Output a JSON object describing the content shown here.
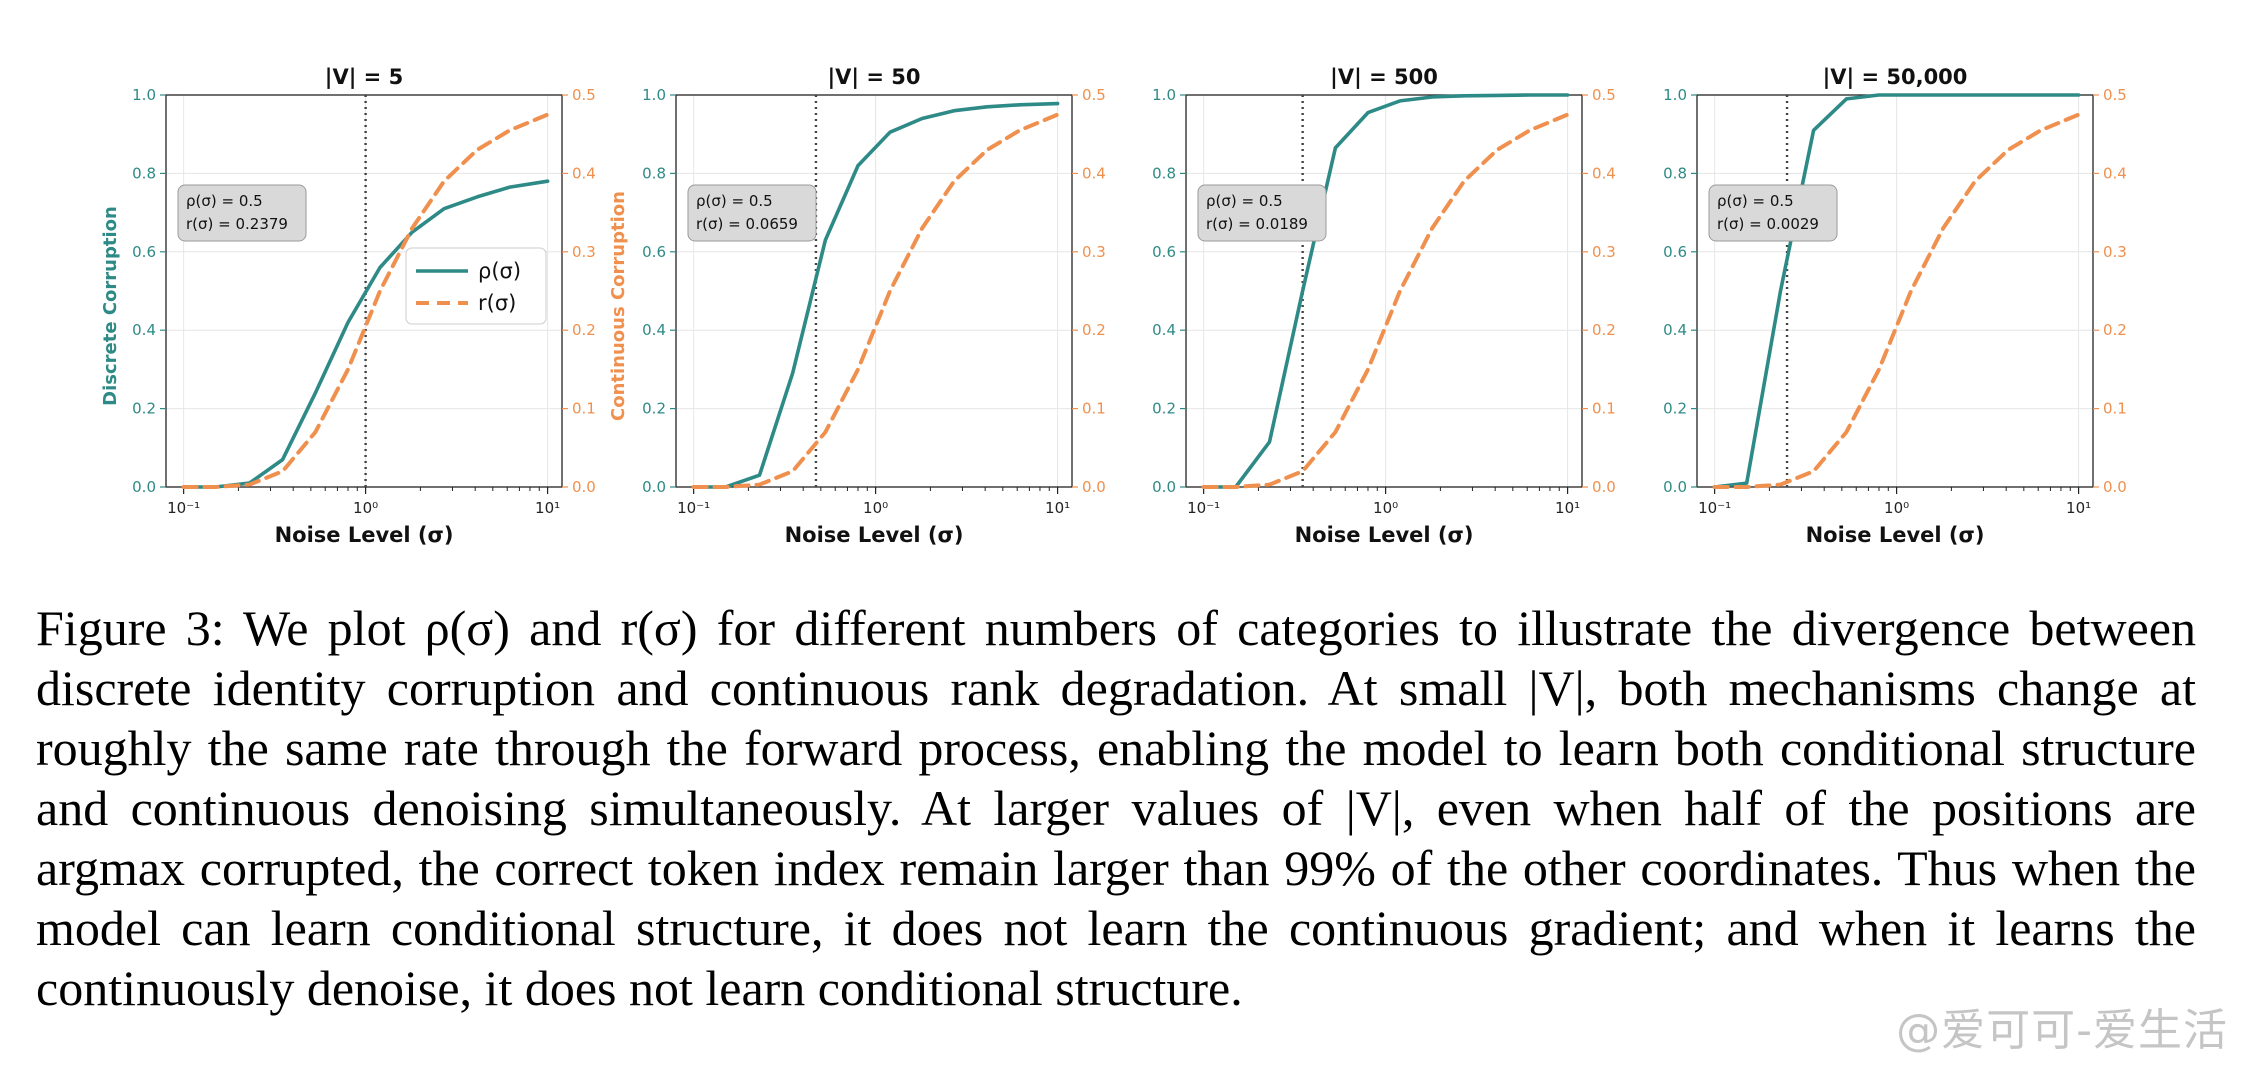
{
  "chart_data": [
    {
      "type": "line",
      "title": "|V| = 5",
      "xlabel": "Noise Level (σ)",
      "ylabel_left": "Discrete Corruption",
      "ylabel_right": "Continuous Corruption",
      "xscale": "log",
      "xlim": [
        0.08,
        12
      ],
      "ylim_left": [
        0.0,
        1.0
      ],
      "ylim_right": [
        0.0,
        0.5
      ],
      "x_ticks": [
        "10⁻¹",
        "10⁰",
        "10¹"
      ],
      "y_ticks_left": [
        "0.0",
        "0.2",
        "0.4",
        "0.6",
        "0.8",
        "1.0"
      ],
      "y_ticks_right": [
        "0.0",
        "0.1",
        "0.2",
        "0.3",
        "0.4",
        "0.5"
      ],
      "vline_x": 1.0,
      "annotation": [
        "ρ(σ) = 0.5",
        "r(σ) = 0.2379"
      ],
      "legend": {
        "placement": "center-right",
        "entries": [
          "ρ(σ)",
          "r(σ)"
        ]
      },
      "series": [
        {
          "name": "ρ(σ)",
          "axis": "left",
          "style": "solid",
          "x": [
            0.1,
            0.15,
            0.23,
            0.35,
            0.53,
            0.8,
            1.2,
            1.8,
            2.7,
            4.1,
            6.2,
            10
          ],
          "y": [
            0.0,
            0.0,
            0.01,
            0.07,
            0.24,
            0.42,
            0.56,
            0.65,
            0.71,
            0.74,
            0.765,
            0.78
          ]
        },
        {
          "name": "r(σ)",
          "axis": "right",
          "style": "dashed",
          "x": [
            0.1,
            0.15,
            0.23,
            0.35,
            0.53,
            0.8,
            1.2,
            1.8,
            2.7,
            4.1,
            6.2,
            10
          ],
          "y": [
            0.0,
            0.0,
            0.003,
            0.02,
            0.07,
            0.15,
            0.25,
            0.33,
            0.39,
            0.43,
            0.455,
            0.475
          ]
        }
      ]
    },
    {
      "type": "line",
      "title": "|V| = 50",
      "xlabel": "Noise Level (σ)",
      "xscale": "log",
      "xlim": [
        0.08,
        12
      ],
      "ylim_left": [
        0.0,
        1.0
      ],
      "ylim_right": [
        0.0,
        0.5
      ],
      "x_ticks": [
        "10⁻¹",
        "10⁰",
        "10¹"
      ],
      "y_ticks_left": [
        "0.0",
        "0.2",
        "0.4",
        "0.6",
        "0.8",
        "1.0"
      ],
      "y_ticks_right": [
        "0.0",
        "0.1",
        "0.2",
        "0.3",
        "0.4",
        "0.5"
      ],
      "vline_x": 0.47,
      "annotation": [
        "ρ(σ) = 0.5",
        "r(σ) = 0.0659"
      ],
      "series": [
        {
          "name": "ρ(σ)",
          "axis": "left",
          "style": "solid",
          "x": [
            0.1,
            0.15,
            0.23,
            0.35,
            0.53,
            0.8,
            1.2,
            1.8,
            2.7,
            4.1,
            6.2,
            10
          ],
          "y": [
            0.0,
            0.0,
            0.03,
            0.29,
            0.63,
            0.82,
            0.905,
            0.94,
            0.96,
            0.97,
            0.975,
            0.978
          ]
        },
        {
          "name": "r(σ)",
          "axis": "right",
          "style": "dashed",
          "x": [
            0.1,
            0.15,
            0.23,
            0.35,
            0.53,
            0.8,
            1.2,
            1.8,
            2.7,
            4.1,
            6.2,
            10
          ],
          "y": [
            0.0,
            0.0,
            0.003,
            0.02,
            0.07,
            0.15,
            0.25,
            0.33,
            0.39,
            0.43,
            0.455,
            0.475
          ]
        }
      ]
    },
    {
      "type": "line",
      "title": "|V| = 500",
      "xlabel": "Noise Level (σ)",
      "xscale": "log",
      "xlim": [
        0.08,
        12
      ],
      "ylim_left": [
        0.0,
        1.0
      ],
      "ylim_right": [
        0.0,
        0.5
      ],
      "x_ticks": [
        "10⁻¹",
        "10⁰",
        "10¹"
      ],
      "y_ticks_left": [
        "0.0",
        "0.2",
        "0.4",
        "0.6",
        "0.8",
        "1.0"
      ],
      "y_ticks_right": [
        "0.0",
        "0.1",
        "0.2",
        "0.3",
        "0.4",
        "0.5"
      ],
      "vline_x": 0.35,
      "annotation": [
        "ρ(σ) = 0.5",
        "r(σ) = 0.0189"
      ],
      "series": [
        {
          "name": "ρ(σ)",
          "axis": "left",
          "style": "solid",
          "x": [
            0.1,
            0.15,
            0.23,
            0.35,
            0.53,
            0.8,
            1.2,
            1.8,
            2.7,
            4.1,
            6.2,
            10
          ],
          "y": [
            0.0,
            0.0,
            0.115,
            0.5,
            0.865,
            0.955,
            0.985,
            0.995,
            0.998,
            0.999,
            1.0,
            1.0
          ]
        },
        {
          "name": "r(σ)",
          "axis": "right",
          "style": "dashed",
          "x": [
            0.1,
            0.15,
            0.23,
            0.35,
            0.53,
            0.8,
            1.2,
            1.8,
            2.7,
            4.1,
            6.2,
            10
          ],
          "y": [
            0.0,
            0.0,
            0.003,
            0.02,
            0.07,
            0.15,
            0.25,
            0.33,
            0.39,
            0.43,
            0.455,
            0.475
          ]
        }
      ]
    },
    {
      "type": "line",
      "title": "|V| = 50,000",
      "xlabel": "Noise Level (σ)",
      "xscale": "log",
      "xlim": [
        0.08,
        12
      ],
      "ylim_left": [
        0.0,
        1.0
      ],
      "ylim_right": [
        0.0,
        0.5
      ],
      "x_ticks": [
        "10⁻¹",
        "10⁰",
        "10¹"
      ],
      "y_ticks_left": [
        "0.0",
        "0.2",
        "0.4",
        "0.6",
        "0.8",
        "1.0"
      ],
      "y_ticks_right": [
        "0.0",
        "0.1",
        "0.2",
        "0.3",
        "0.4",
        "0.5"
      ],
      "vline_x": 0.25,
      "annotation": [
        "ρ(σ) = 0.5",
        "r(σ) = 0.0029"
      ],
      "series": [
        {
          "name": "ρ(σ)",
          "axis": "left",
          "style": "solid",
          "x": [
            0.1,
            0.15,
            0.23,
            0.35,
            0.53,
            0.8,
            1.2,
            1.8,
            2.7,
            4.1,
            6.2,
            10
          ],
          "y": [
            0.0,
            0.01,
            0.5,
            0.91,
            0.99,
            1.0,
            1.0,
            1.0,
            1.0,
            1.0,
            1.0,
            1.0
          ]
        },
        {
          "name": "r(σ)",
          "axis": "right",
          "style": "dashed",
          "x": [
            0.1,
            0.15,
            0.23,
            0.35,
            0.53,
            0.8,
            1.2,
            1.8,
            2.7,
            4.1,
            6.2,
            10
          ],
          "y": [
            0.0,
            0.0,
            0.003,
            0.02,
            0.07,
            0.15,
            0.25,
            0.33,
            0.39,
            0.43,
            0.455,
            0.475
          ]
        }
      ]
    }
  ],
  "colors": {
    "rho": "#2e8a86",
    "r": "#f0904e",
    "vline": "#444444",
    "grid": "#e6e6e6",
    "annotation_box": "#d9d9d9"
  },
  "caption": "Figure 3: We plot ρ(σ) and r(σ) for different numbers of categories to illustrate the divergence be­tween discrete identity corruption and continuous rank degradation. At small |V|, both mechanisms change at roughly the same rate through the forward process, enabling the model to learn both con­ditional structure and continuous denoising simultaneously. At larger values of |V|, even when half of the positions are argmax corrupted, the correct token index remain larger than 99% of the other coordinates. Thus when the model can learn conditional structure, it does not learn the continuous gradient; and when it learns the continuously denoise, it does not learn conditional structure.",
  "watermark": "@爱可可-爱生活"
}
